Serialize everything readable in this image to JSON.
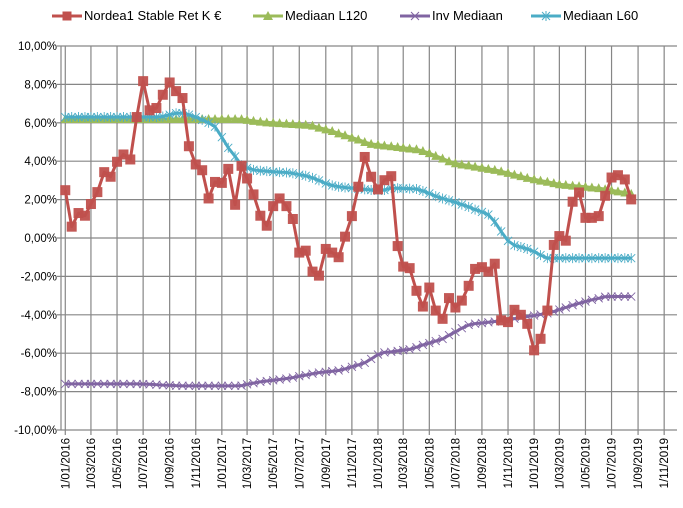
{
  "chart_data": {
    "type": "line",
    "title": "",
    "xlabel": "",
    "ylabel": "",
    "ylim": [
      -10,
      10
    ],
    "xlim": [
      "2015-12-22",
      "2019-12-01"
    ],
    "grid": true,
    "legend_position": "top",
    "y_tick_values": [
      10,
      8,
      6,
      4,
      2,
      0,
      -2,
      -4,
      -6,
      -8,
      -10
    ],
    "y_tick_labels": [
      "10,00%",
      "8,00%",
      "6,00%",
      "4,00%",
      "2,00%",
      "0,00%",
      "-2,00%",
      "-4,00%",
      "-6,00%",
      "-8,00%",
      "-10,00%"
    ],
    "x_tick_values": [
      "2016-01-01",
      "2016-03-01",
      "2016-05-01",
      "2016-07-01",
      "2016-09-01",
      "2016-11-01",
      "2017-01-01",
      "2017-03-01",
      "2017-05-01",
      "2017-07-01",
      "2017-09-01",
      "2017-11-01",
      "2018-01-01",
      "2018-03-01",
      "2018-05-01",
      "2018-07-01",
      "2018-09-01",
      "2018-11-01",
      "2019-01-01",
      "2019-03-01",
      "2019-05-01",
      "2019-07-01",
      "2019-09-01",
      "2019-11-01"
    ],
    "x_tick_labels": [
      "1/01/2016",
      "1/03/2016",
      "1/05/2016",
      "1/07/2016",
      "1/09/2016",
      "1/11/2016",
      "1/01/2017",
      "1/03/2017",
      "1/05/2017",
      "1/07/2017",
      "1/09/2017",
      "1/11/2017",
      "1/01/2018",
      "1/03/2018",
      "1/05/2018",
      "1/07/2018",
      "1/09/2018",
      "1/11/2018",
      "1/01/2019",
      "1/03/2019",
      "1/05/2019",
      "1/07/2019",
      "1/09/2019",
      "1/11/2019"
    ],
    "x": [
      "2016-01-01",
      "2016-01-16",
      "2016-02-01",
      "2016-02-16",
      "2016-03-01",
      "2016-03-16",
      "2016-04-01",
      "2016-04-16",
      "2016-05-01",
      "2016-05-16",
      "2016-06-01",
      "2016-06-16",
      "2016-07-01",
      "2016-07-16",
      "2016-08-01",
      "2016-08-16",
      "2016-09-01",
      "2016-09-16",
      "2016-10-01",
      "2016-10-16",
      "2016-11-01",
      "2016-11-16",
      "2016-12-01",
      "2016-12-16",
      "2017-01-01",
      "2017-01-16",
      "2017-02-01",
      "2017-02-16",
      "2017-03-01",
      "2017-03-16",
      "2017-04-01",
      "2017-04-16",
      "2017-05-01",
      "2017-05-16",
      "2017-06-01",
      "2017-06-16",
      "2017-07-01",
      "2017-07-16",
      "2017-08-01",
      "2017-08-16",
      "2017-09-01",
      "2017-09-16",
      "2017-10-01",
      "2017-10-16",
      "2017-11-01",
      "2017-11-16",
      "2017-12-01",
      "2017-12-16",
      "2018-01-01",
      "2018-01-16",
      "2018-02-01",
      "2018-02-16",
      "2018-03-01",
      "2018-03-16",
      "2018-04-01",
      "2018-04-16",
      "2018-05-01",
      "2018-05-16",
      "2018-06-01",
      "2018-06-16",
      "2018-07-01",
      "2018-07-16",
      "2018-08-01",
      "2018-08-16",
      "2018-09-01",
      "2018-09-16",
      "2018-10-01",
      "2018-10-16",
      "2018-11-01",
      "2018-11-16",
      "2018-12-01",
      "2018-12-16",
      "2019-01-01",
      "2019-01-16",
      "2019-02-01",
      "2019-02-16",
      "2019-03-01",
      "2019-03-16",
      "2019-04-01",
      "2019-04-16",
      "2019-05-01",
      "2019-05-16",
      "2019-06-01",
      "2019-06-16",
      "2019-07-01",
      "2019-07-16",
      "2019-08-01",
      "2019-08-16"
    ],
    "series": [
      {
        "name": "Mediaan L120",
        "color": "#9BBB59",
        "marker": "triangle",
        "values": [
          6.2,
          6.2,
          6.2,
          6.2,
          6.2,
          6.2,
          6.2,
          6.2,
          6.2,
          6.2,
          6.2,
          6.2,
          6.2,
          6.2,
          6.2,
          6.2,
          6.2,
          6.2,
          6.2,
          6.2,
          6.2,
          6.2,
          6.2,
          6.2,
          6.2,
          6.2,
          6.2,
          6.19,
          6.15,
          6.1,
          6.06,
          6.02,
          6.0,
          5.98,
          5.96,
          5.94,
          5.92,
          5.9,
          5.85,
          5.75,
          5.66,
          5.57,
          5.45,
          5.35,
          5.23,
          5.13,
          5.0,
          4.9,
          4.86,
          4.82,
          4.78,
          4.74,
          4.7,
          4.66,
          4.62,
          4.53,
          4.42,
          4.28,
          4.14,
          4.0,
          3.89,
          3.83,
          3.78,
          3.72,
          3.66,
          3.6,
          3.55,
          3.47,
          3.39,
          3.3,
          3.22,
          3.13,
          3.06,
          2.99,
          2.93,
          2.86,
          2.8,
          2.77,
          2.73,
          2.7,
          2.67,
          2.63,
          2.6,
          2.54,
          2.48,
          2.43,
          2.37,
          2.3
        ]
      },
      {
        "name": "Mediaan L60",
        "color": "#4BACC6",
        "marker": "asterisk",
        "values": [
          6.3,
          6.3,
          6.3,
          6.3,
          6.3,
          6.3,
          6.3,
          6.3,
          6.3,
          6.3,
          6.3,
          6.3,
          6.3,
          6.3,
          6.3,
          6.33,
          6.42,
          6.5,
          6.5,
          6.42,
          6.3,
          6.15,
          6.0,
          5.8,
          5.25,
          4.7,
          4.25,
          3.79,
          3.65,
          3.55,
          3.5,
          3.48,
          3.45,
          3.43,
          3.41,
          3.37,
          3.3,
          3.24,
          3.13,
          3.0,
          2.84,
          2.74,
          2.67,
          2.63,
          2.6,
          2.57,
          2.53,
          2.5,
          2.46,
          2.5,
          2.6,
          2.59,
          2.58,
          2.57,
          2.55,
          2.45,
          2.32,
          2.18,
          2.06,
          1.96,
          1.86,
          1.74,
          1.62,
          1.48,
          1.36,
          1.22,
          0.84,
          0.34,
          -0.15,
          -0.38,
          -0.47,
          -0.57,
          -0.71,
          -0.89,
          -1.05,
          -1.05,
          -1.05,
          -1.05,
          -1.05,
          -1.05,
          -1.05,
          -1.05,
          -1.05,
          -1.05,
          -1.05,
          -1.05,
          -1.05,
          -1.05
        ]
      },
      {
        "name": "Inv Mediaan",
        "color": "#8064A2",
        "marker": "x",
        "values": [
          -7.6,
          -7.6,
          -7.6,
          -7.6,
          -7.6,
          -7.6,
          -7.6,
          -7.6,
          -7.6,
          -7.6,
          -7.6,
          -7.6,
          -7.61,
          -7.62,
          -7.64,
          -7.66,
          -7.67,
          -7.69,
          -7.7,
          -7.7,
          -7.7,
          -7.7,
          -7.7,
          -7.7,
          -7.7,
          -7.7,
          -7.7,
          -7.69,
          -7.62,
          -7.56,
          -7.49,
          -7.45,
          -7.41,
          -7.37,
          -7.32,
          -7.27,
          -7.2,
          -7.14,
          -7.07,
          -7.01,
          -6.97,
          -6.94,
          -6.9,
          -6.82,
          -6.71,
          -6.61,
          -6.5,
          -6.3,
          -6.07,
          -5.96,
          -5.93,
          -5.88,
          -5.84,
          -5.8,
          -5.69,
          -5.57,
          -5.47,
          -5.37,
          -5.26,
          -5.06,
          -4.89,
          -4.7,
          -4.53,
          -4.46,
          -4.43,
          -4.39,
          -4.35,
          -4.31,
          -4.26,
          -4.2,
          -4.15,
          -4.09,
          -4.04,
          -3.98,
          -3.92,
          -3.83,
          -3.73,
          -3.62,
          -3.5,
          -3.4,
          -3.31,
          -3.22,
          -3.14,
          -3.06,
          -3.05,
          -3.05,
          -3.05,
          -3.05
        ]
      },
      {
        "name": "Nordea1 Stable Ret K €",
        "color": "#C0504D",
        "marker": "square",
        "values": [
          2.49,
          0.59,
          1.3,
          1.16,
          1.77,
          2.39,
          3.43,
          3.19,
          3.97,
          4.35,
          4.09,
          6.3,
          8.17,
          6.65,
          6.77,
          7.46,
          8.1,
          7.65,
          7.29,
          4.78,
          3.83,
          3.53,
          2.06,
          2.92,
          2.87,
          3.6,
          1.73,
          3.76,
          3.1,
          2.27,
          1.16,
          0.64,
          1.66,
          2.06,
          1.66,
          0.99,
          -0.76,
          -0.66,
          -1.75,
          -1.96,
          -0.57,
          -0.76,
          -1.0,
          0.07,
          1.14,
          2.67,
          4.22,
          3.19,
          2.53,
          3.01,
          3.22,
          -0.42,
          -1.49,
          -1.57,
          -2.75,
          -3.57,
          -2.58,
          -3.78,
          -4.21,
          -3.13,
          -3.62,
          -3.26,
          -2.49,
          -1.61,
          -1.52,
          -1.75,
          -1.34,
          -4.29,
          -4.38,
          -3.74,
          -4.0,
          -4.47,
          -5.85,
          -5.25,
          -3.78,
          -0.36,
          0.1,
          -0.14,
          1.89,
          2.37,
          1.05,
          1.05,
          1.14,
          2.2,
          3.15,
          3.27,
          3.05,
          2.01
        ]
      }
    ],
    "legend": [
      {
        "label": "Nordea1 Stable Ret K €",
        "color": "#C0504D",
        "marker": "square"
      },
      {
        "label": "Mediaan L120",
        "color": "#9BBB59",
        "marker": "triangle"
      },
      {
        "label": "Inv Mediaan",
        "color": "#8064A2",
        "marker": "x"
      },
      {
        "label": "Mediaan L60",
        "color": "#4BACC6",
        "marker": "asterisk"
      }
    ],
    "gridline_color": "#868686"
  }
}
